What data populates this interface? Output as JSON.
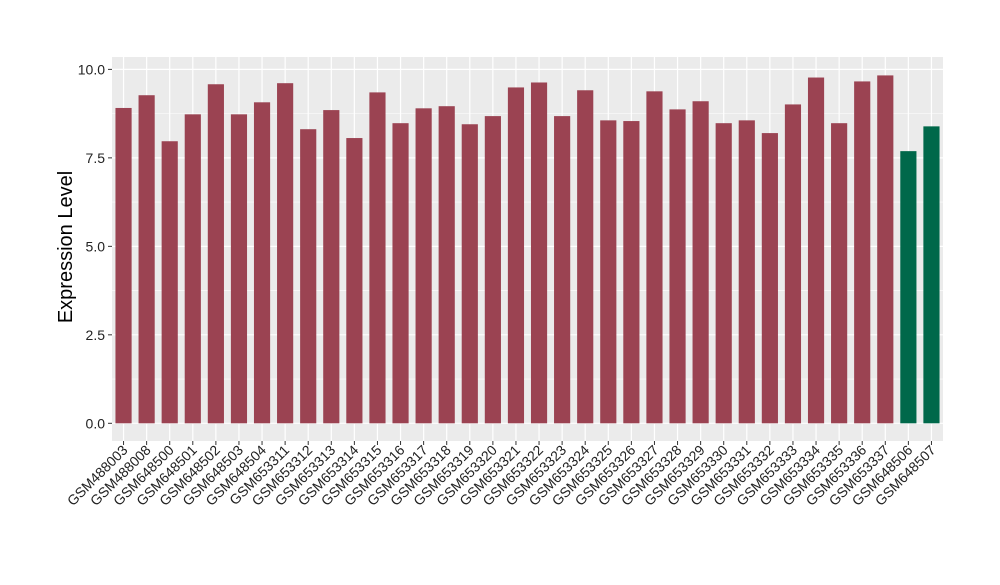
{
  "chart_data": {
    "type": "bar",
    "title": "",
    "xlabel": "",
    "ylabel": "Expression Level",
    "ylim": [
      -0.5,
      10.35
    ],
    "yticks": [
      0,
      2.5,
      5,
      7.5,
      10
    ],
    "ytick_labels": [
      "0.0",
      "2.5",
      "5.0",
      "7.5",
      "10.0"
    ],
    "grid": true,
    "legend": "none",
    "colors": {
      "group1": "#9b4352",
      "group2": "#00684a",
      "panel": "#ebebeb",
      "grid": "#ffffff"
    },
    "categories": [
      "GSM488003",
      "GSM488008",
      "GSM648500",
      "GSM648501",
      "GSM648502",
      "GSM648503",
      "GSM648504",
      "GSM653311",
      "GSM653312",
      "GSM653313",
      "GSM653314",
      "GSM653315",
      "GSM653316",
      "GSM653317",
      "GSM653318",
      "GSM653319",
      "GSM653320",
      "GSM653321",
      "GSM653322",
      "GSM653323",
      "GSM653324",
      "GSM653325",
      "GSM653326",
      "GSM653327",
      "GSM653328",
      "GSM653329",
      "GSM653330",
      "GSM653331",
      "GSM653332",
      "GSM653333",
      "GSM653334",
      "GSM653335",
      "GSM653336",
      "GSM653337",
      "GSM648506",
      "GSM648507"
    ],
    "values": [
      8.91,
      9.27,
      7.97,
      8.73,
      9.58,
      8.73,
      9.07,
      9.61,
      8.31,
      8.85,
      8.06,
      9.35,
      8.48,
      8.9,
      8.96,
      8.45,
      8.68,
      9.49,
      9.63,
      8.68,
      9.41,
      8.56,
      8.54,
      9.38,
      8.87,
      9.1,
      8.48,
      8.56,
      8.2,
      9.01,
      9.77,
      8.48,
      9.66,
      9.83,
      7.69,
      8.39
    ],
    "groups": [
      1,
      1,
      1,
      1,
      1,
      1,
      1,
      1,
      1,
      1,
      1,
      1,
      1,
      1,
      1,
      1,
      1,
      1,
      1,
      1,
      1,
      1,
      1,
      1,
      1,
      1,
      1,
      1,
      1,
      1,
      1,
      1,
      1,
      1,
      2,
      2
    ]
  }
}
